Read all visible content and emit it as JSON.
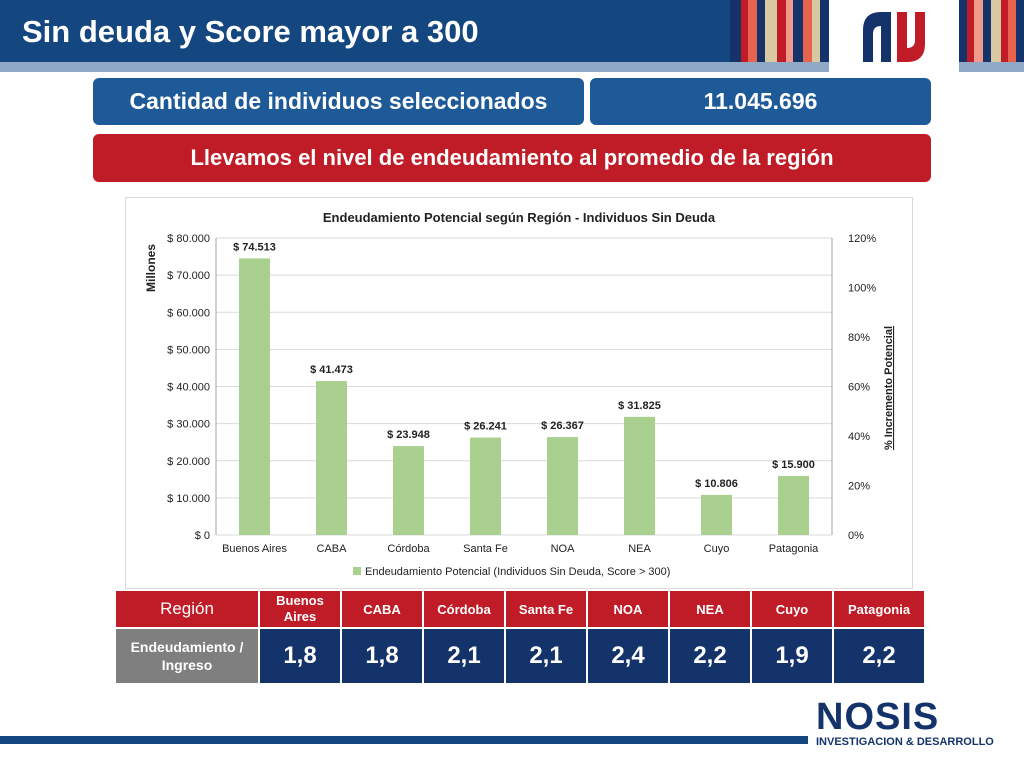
{
  "header": {
    "title": "Sin deuda y Score mayor a 300"
  },
  "summary": {
    "label": "Cantidad de individuos seleccionados",
    "value": "11.045.696",
    "message": "Llevamos el nivel de endeudamiento al promedio de la región"
  },
  "chart_data": {
    "type": "bar",
    "title": "Endeudamiento Potencial según Región - Individuos Sin Deuda",
    "ylabel": "Millones",
    "y2label": "% Incremento Potencial",
    "categories": [
      "Buenos Aires",
      "CABA",
      "Córdoba",
      "Santa Fe",
      "NOA",
      "NEA",
      "Cuyo",
      "Patagonia"
    ],
    "series": [
      {
        "name": "Endeudamiento Potencial (Individuos Sin Deuda, Score > 300)",
        "values": [
          74513,
          41473,
          23948,
          26241,
          26367,
          31825,
          10806,
          15900
        ]
      }
    ],
    "data_labels": [
      "$ 74.513",
      "$ 41.473",
      "$ 23.948",
      "$ 26.241",
      "$ 26.367",
      "$ 31.825",
      "$ 10.806",
      "$ 15.900"
    ],
    "ylim": [
      0,
      80000
    ],
    "yticks": [
      "$ 0",
      "$ 10.000",
      "$ 20.000",
      "$ 30.000",
      "$ 40.000",
      "$ 50.000",
      "$ 60.000",
      "$ 70.000",
      "$ 80.000"
    ],
    "y2lim": [
      0,
      120
    ],
    "y2ticks": [
      "0%",
      "20%",
      "40%",
      "60%",
      "80%",
      "100%",
      "120%"
    ],
    "bar_color": "#a9d08e",
    "legend_position": "bottom",
    "grid": true
  },
  "table": {
    "header_label": "Región",
    "regions": [
      "Buenos Aires",
      "CABA",
      "Córdoba",
      "Santa Fe",
      "NOA",
      "NEA",
      "Cuyo",
      "Patagonia"
    ],
    "row_label": "Endeudamiento / Ingreso",
    "values": [
      "1,8",
      "1,8",
      "2,1",
      "2,1",
      "2,4",
      "2,2",
      "1,9",
      "2,2"
    ]
  },
  "footer": {
    "brand": "NOSIS",
    "tagline": "INVESTIGACION & DESARROLLO"
  },
  "colors": {
    "navy": "#14467f",
    "red": "#c01c27",
    "bar": "#a9d08e"
  }
}
